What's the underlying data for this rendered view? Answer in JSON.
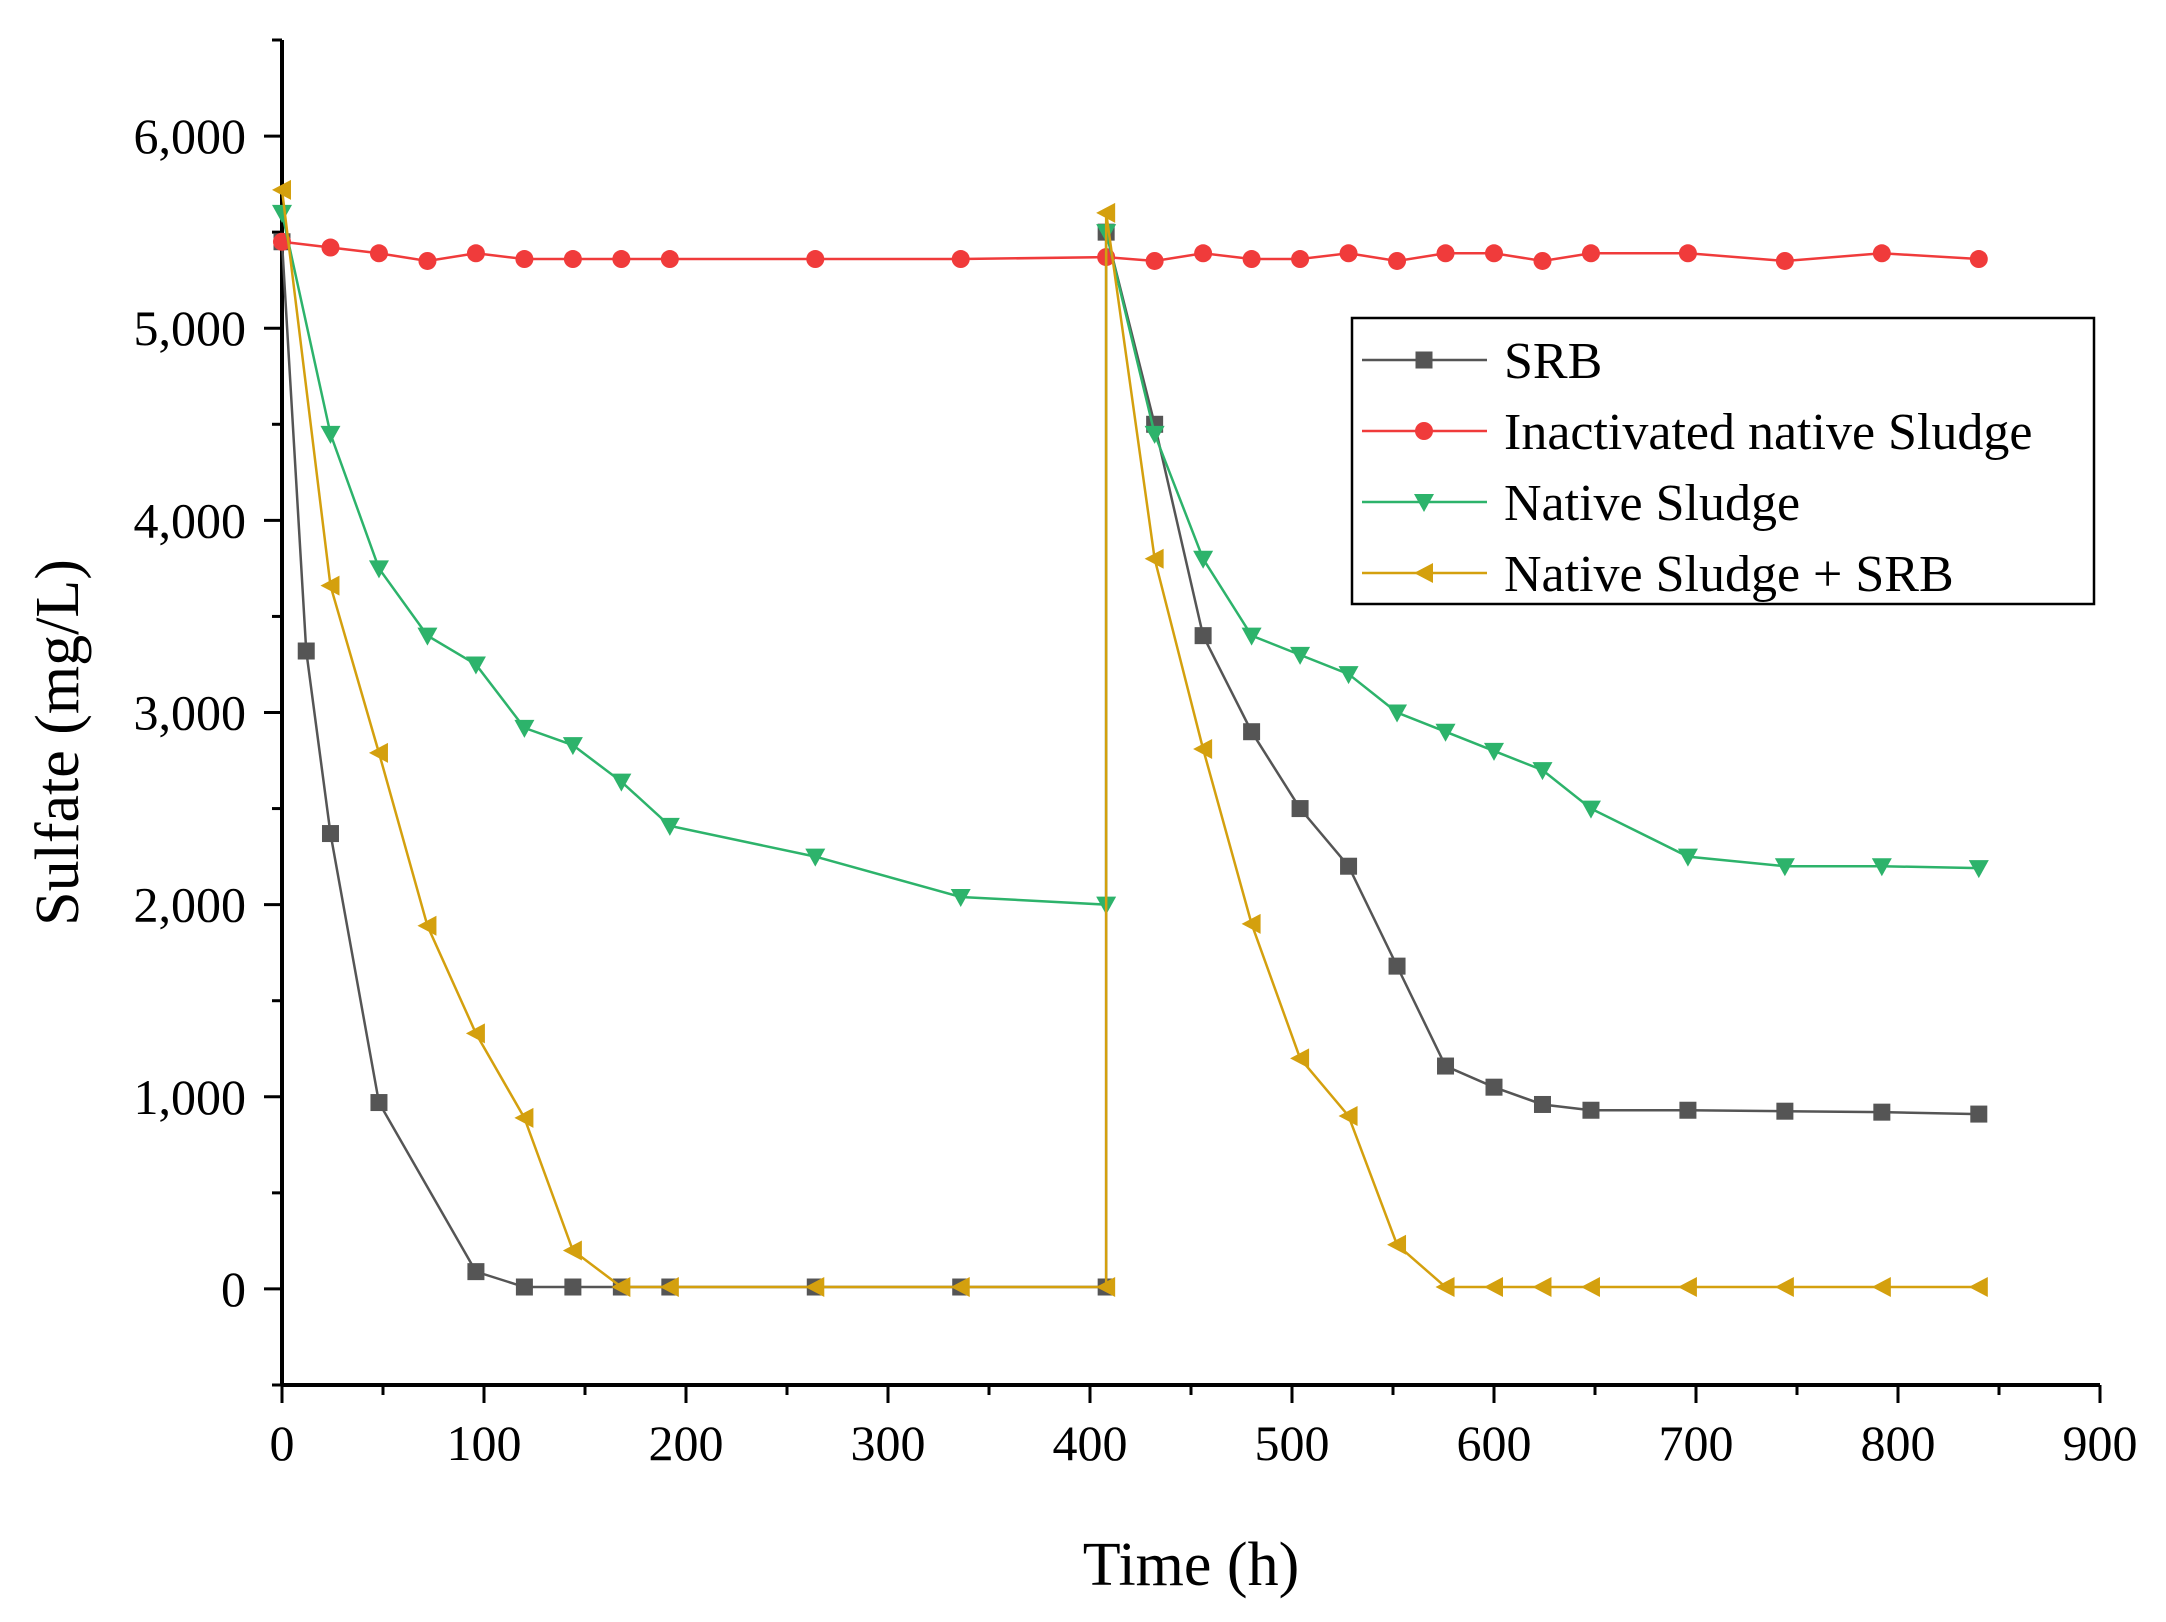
{
  "chart_data": {
    "type": "line",
    "title": "",
    "xlabel": "Time (h)",
    "ylabel": "Sulfate (mg/L)",
    "xlim": [
      0,
      900
    ],
    "ylim": [
      -500,
      6500
    ],
    "xticks": [
      0,
      100,
      200,
      300,
      400,
      500,
      600,
      700,
      800,
      900
    ],
    "xtick_labels": [
      "0",
      "100",
      "200",
      "300",
      "400",
      "500",
      "600",
      "700",
      "800",
      "900"
    ],
    "yticks": [
      0,
      1000,
      2000,
      3000,
      4000,
      5000,
      6000
    ],
    "ytick_labels": [
      "0",
      "1,000",
      "2,000",
      "3,000",
      "4,000",
      "5,000",
      "6,000"
    ],
    "grid": false,
    "legend_position": "top-right",
    "series": [
      {
        "name": "SRB",
        "color": "#555555",
        "marker": "square",
        "x": [
          0,
          12,
          24,
          48,
          96,
          120,
          144,
          168,
          192,
          264,
          336,
          408,
          408,
          432,
          456,
          480,
          504,
          528,
          552,
          576,
          600,
          624,
          648,
          696,
          744,
          792,
          840
        ],
        "y": [
          5450,
          3320,
          2370,
          970,
          90,
          10,
          10,
          10,
          10,
          10,
          10,
          10,
          5500,
          4500,
          3400,
          2900,
          2500,
          2200,
          1680,
          1160,
          1050,
          960,
          930,
          930,
          925,
          920,
          910
        ]
      },
      {
        "name": "Inactivated native Sludge",
        "color": "#f03b3b",
        "marker": "circle",
        "x": [
          0,
          24,
          48,
          72,
          96,
          120,
          144,
          168,
          192,
          264,
          336,
          408,
          432,
          456,
          480,
          504,
          528,
          552,
          576,
          600,
          624,
          648,
          696,
          744,
          792,
          840
        ],
        "y": [
          5450,
          5420,
          5390,
          5350,
          5390,
          5360,
          5360,
          5360,
          5360,
          5360,
          5360,
          5370,
          5350,
          5390,
          5360,
          5360,
          5390,
          5350,
          5390,
          5390,
          5350,
          5390,
          5390,
          5350,
          5390,
          5360
        ]
      },
      {
        "name": "Native Sludge",
        "color": "#2db36b",
        "marker": "triangle-down",
        "x": [
          0,
          24,
          48,
          72,
          96,
          120,
          144,
          168,
          192,
          264,
          336,
          408,
          408,
          432,
          456,
          480,
          504,
          528,
          552,
          576,
          600,
          624,
          648,
          696,
          744,
          792,
          840
        ],
        "y": [
          5600,
          4450,
          3750,
          3400,
          3250,
          2920,
          2830,
          2640,
          2410,
          2250,
          2040,
          2000,
          5500,
          4450,
          3800,
          3400,
          3300,
          3200,
          3000,
          2900,
          2800,
          2700,
          2500,
          2250,
          2200,
          2200,
          2190
        ]
      },
      {
        "name": "Native Sludge + SRB",
        "color": "#d4a00e",
        "marker": "triangle-left",
        "x": [
          0,
          24,
          48,
          72,
          96,
          120,
          144,
          168,
          192,
          264,
          336,
          408,
          408,
          432,
          456,
          480,
          504,
          528,
          552,
          576,
          600,
          624,
          648,
          696,
          744,
          792,
          840
        ],
        "y": [
          5720,
          3660,
          2790,
          1890,
          1330,
          890,
          200,
          10,
          10,
          10,
          10,
          10,
          5600,
          3800,
          2810,
          1900,
          1200,
          900,
          230,
          10,
          10,
          10,
          10,
          10,
          10,
          10,
          10
        ]
      }
    ]
  }
}
